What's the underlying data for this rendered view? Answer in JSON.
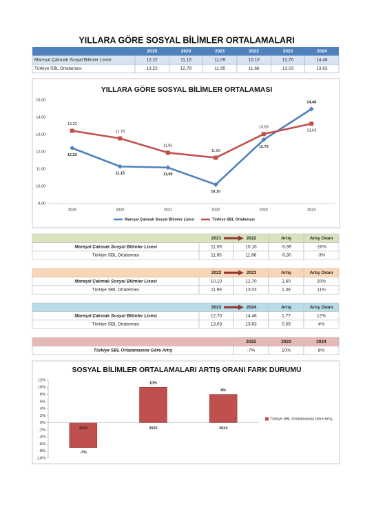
{
  "title": "YILLARA GÖRE SOSYAL BİLİMLER ORTALAMALARI",
  "summary_table": {
    "header": [
      "2019",
      "2020",
      "2021",
      "2022",
      "2023",
      "2024"
    ],
    "rows": [
      [
        "Mareşal Çakmak Sosyal Bilimler Lisesi",
        "12,22",
        "11,15",
        "11,09",
        "10,10",
        "12,70",
        "14,48"
      ],
      [
        "Türkiye SBL Ortalaması",
        "13,22",
        "12,78",
        "11,95",
        "11,66",
        "13,03",
        "13,63"
      ]
    ]
  },
  "chart_data": [
    {
      "type": "line",
      "title": "YILLARA GÖRE SOSYAL BİLİMLER ORTALAMASI",
      "categories": [
        "2019",
        "2020",
        "2021",
        "2022",
        "2023",
        "2024"
      ],
      "series": [
        {
          "name": "Mareşal Çakmak Sosyal Bilimler Lisesi",
          "color": "#4f81bd",
          "values": [
            12.22,
            11.15,
            11.09,
            10.1,
            12.7,
            14.48
          ],
          "value_labels": [
            "12,22",
            "11,15",
            "11,09",
            "10,10",
            "12,70",
            "14,48"
          ]
        },
        {
          "name": "Türkiye SBL Ortalaması",
          "color": "#c0504d",
          "values": [
            13.22,
            12.78,
            11.95,
            11.66,
            13.03,
            13.63
          ],
          "value_labels": [
            "13,22",
            "12,78",
            "11,95",
            "11,66",
            "13,03",
            "13,63"
          ]
        }
      ],
      "ylim": [
        9,
        15
      ],
      "yticks": [
        {
          "value": 9,
          "label": "9,00"
        },
        {
          "value": 10,
          "label": "10,00"
        },
        {
          "value": 11,
          "label": "11,00"
        },
        {
          "value": 12,
          "label": "12,00"
        },
        {
          "value": 13,
          "label": "13,00"
        },
        {
          "value": 14,
          "label": "14,00"
        },
        {
          "value": 15,
          "label": "15,00"
        }
      ],
      "legend": "bottom"
    },
    {
      "type": "bar",
      "title": "SOSYAL BİLİMLER ORTALAMALARI ARTIŞ ORANI FARK DURUMU",
      "categories": [
        "2022",
        "2023",
        "2024"
      ],
      "series": [
        {
          "name": "Türkiye SBL Ortalamasına Göre Artış",
          "color": "#c0504d",
          "values": [
            -7,
            10,
            8
          ],
          "value_labels": [
            "-7%",
            "10%",
            "8%"
          ]
        }
      ],
      "ylim": [
        -10,
        12
      ],
      "yticks": [
        {
          "value": -10,
          "label": "-10%"
        },
        {
          "value": -8,
          "label": "-8%"
        },
        {
          "value": -6,
          "label": "-6%"
        },
        {
          "value": -4,
          "label": "-4%"
        },
        {
          "value": -2,
          "label": "-2%"
        },
        {
          "value": 0,
          "label": "0%"
        },
        {
          "value": 2,
          "label": "2%"
        },
        {
          "value": 4,
          "label": "4%"
        },
        {
          "value": 6,
          "label": "6%"
        },
        {
          "value": 8,
          "label": "8%"
        },
        {
          "value": 10,
          "label": "10%"
        },
        {
          "value": 12,
          "label": "12%"
        }
      ],
      "legend": "right"
    }
  ],
  "comparisons": [
    {
      "header": [
        "2021",
        "2022",
        "Artış",
        "Artış Oranı"
      ],
      "rows": [
        [
          "Mareşal Çakmak Sosyal Bilimler Lisesi",
          "11,09",
          "10,10",
          "-0,99",
          "-10%"
        ],
        [
          "Türkiye SBL Ortalaması",
          "11,95",
          "11,66",
          "-0,30",
          "-3%"
        ]
      ]
    },
    {
      "header": [
        "2022",
        "2023",
        "Artış",
        "Artış Oranı"
      ],
      "rows": [
        [
          "Mareşal Çakmak Sosyal Bilimler Lisesi",
          "10,10",
          "12,70",
          "2,60",
          "20%"
        ],
        [
          "Türkiye SBL Ortalaması",
          "11,66",
          "13,03",
          "1,38",
          "11%"
        ]
      ]
    },
    {
      "header": [
        "2023",
        "2024",
        "Artış",
        "Artış Oranı"
      ],
      "rows": [
        [
          "Mareşal Çakmak Sosyal Bilimler Lisesi",
          "12,70",
          "14,48",
          "1,77",
          "12%"
        ],
        [
          "Türkiye SBL Ortalaması",
          "13,03",
          "13,63",
          "0,59",
          "4%"
        ]
      ]
    }
  ],
  "increase_table": {
    "header": [
      "2022",
      "2023",
      "2024"
    ],
    "rows": [
      [
        "Türkiye SBL Ortalamasına Göre Artış",
        "-7%",
        "10%",
        "8%"
      ]
    ]
  }
}
